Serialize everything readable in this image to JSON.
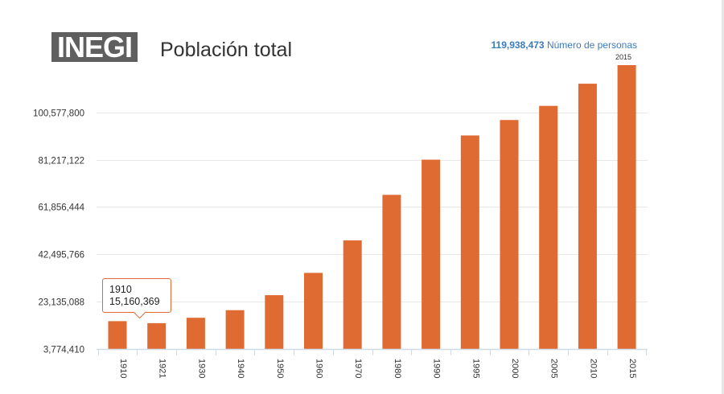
{
  "header": {
    "logo_text": "INEGI",
    "title": "Población total",
    "total_value": "119,938,473",
    "total_label": "Número de personas",
    "total_year": "2015"
  },
  "tooltip": {
    "year": "1910",
    "value": "15,160,369"
  },
  "colors": {
    "bar": "#e06b32",
    "grid": "#e8e8e8",
    "axis": "#cfdbe6",
    "accent": "#3b7bbd"
  },
  "chart_data": {
    "type": "bar",
    "title": "Población total",
    "categories": [
      "1910",
      "1921",
      "1930",
      "1940",
      "1950",
      "1960",
      "1970",
      "1980",
      "1990",
      "1995",
      "2000",
      "2005",
      "2010",
      "2015"
    ],
    "series": [
      {
        "values": [
          15160369,
          14334780,
          16552722,
          19653552,
          25791017,
          34923129,
          48225238,
          66846833,
          81249645,
          91158290,
          97483412,
          103263388,
          112336538,
          119938473
        ]
      }
    ],
    "yticks": [
      "3,774,410",
      "23,135,088",
      "42,495,766",
      "61,856,444",
      "81,217,122",
      "100,577,800"
    ],
    "ylim": [
      3774410,
      119938473
    ],
    "grid": true,
    "xlabel": "",
    "ylabel": ""
  }
}
